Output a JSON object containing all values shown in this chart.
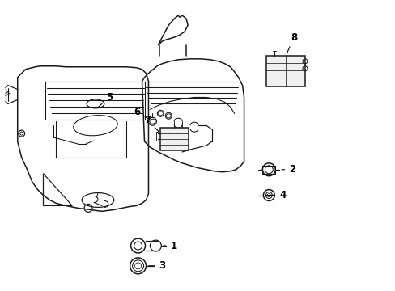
{
  "background_color": "#ffffff",
  "line_color": "#1a1a1a",
  "line_width": 1.1,
  "label_fontsize": 8.5,
  "label_color": "#000000"
}
